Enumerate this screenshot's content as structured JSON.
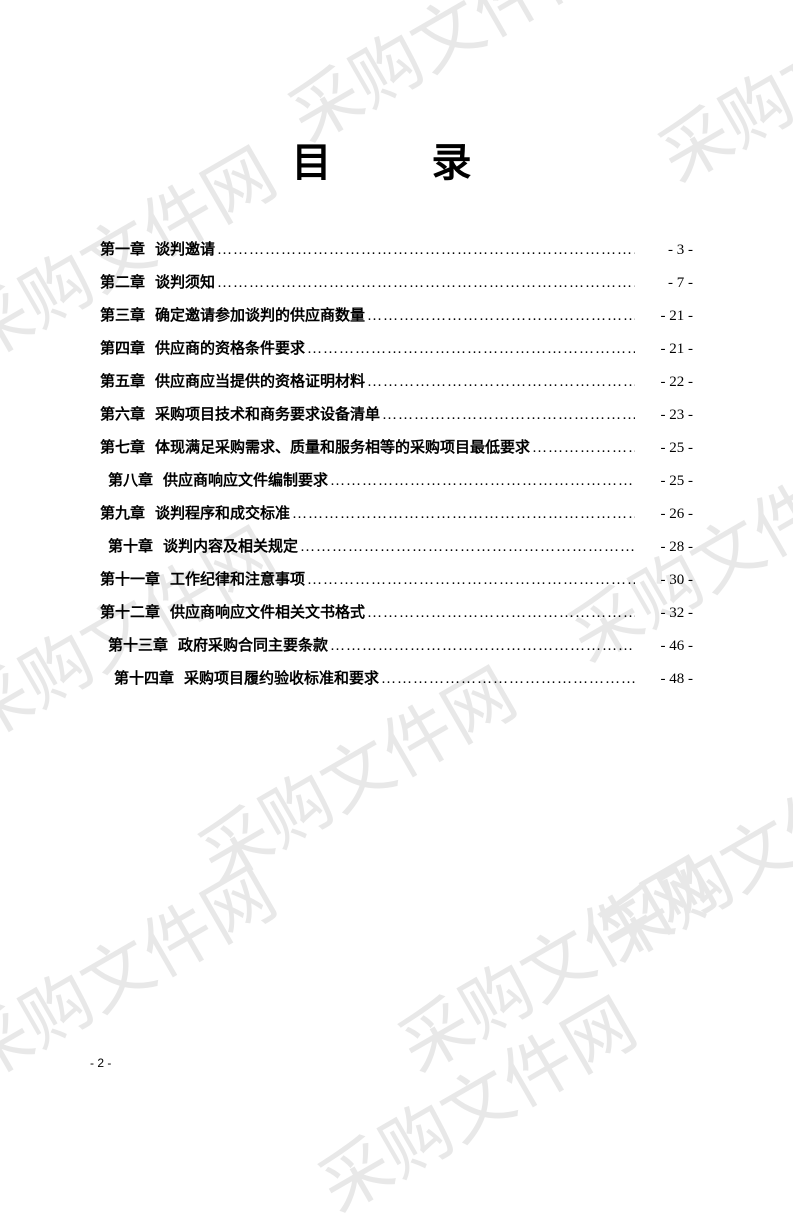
{
  "title": "目　录",
  "watermark_text": "采购文件网",
  "page_number": "- 2 -",
  "toc": [
    {
      "chapter": "第一章",
      "label": "谈判邀请",
      "page": "- 3 -",
      "indent": 0
    },
    {
      "chapter": "第二章",
      "label": "谈判须知",
      "page": "- 7 -",
      "indent": 0
    },
    {
      "chapter": "第三章",
      "label": "确定邀请参加谈判的供应商数量",
      "page": "- 21 -",
      "indent": 0
    },
    {
      "chapter": "第四章",
      "label": "供应商的资格条件要求",
      "page": "- 21 -",
      "indent": 0
    },
    {
      "chapter": "第五章",
      "label": "供应商应当提供的资格证明材料",
      "page": "- 22 -",
      "indent": 0
    },
    {
      "chapter": "第六章",
      "label": "采购项目技术和商务要求设备清单",
      "page": "- 23 -",
      "indent": 0
    },
    {
      "chapter": "第七章",
      "label": "体现满足采购需求、质量和服务相等的采购项目最低要求",
      "page": "- 25 -",
      "indent": 0
    },
    {
      "chapter": "第八章",
      "label": "供应商响应文件编制要求",
      "page": "- 25 -",
      "indent": 1
    },
    {
      "chapter": "第九章",
      "label": "谈判程序和成交标准",
      "page": "- 26 -",
      "indent": 0
    },
    {
      "chapter": "第十章",
      "label": "谈判内容及相关规定",
      "page": "- 28 -",
      "indent": 1
    },
    {
      "chapter": "第十一章",
      "label": "工作纪律和注意事项",
      "page": "- 30 -",
      "indent": 0
    },
    {
      "chapter": "第十二章",
      "label": "供应商响应文件相关文书格式",
      "page": "- 32 -",
      "indent": 0
    },
    {
      "chapter": "第十三章",
      "label": "政府采购合同主要条款",
      "page": "- 46 -",
      "indent": 1
    },
    {
      "chapter": "第十四章",
      "label": "采购项目履约验收标准和要求",
      "page": "- 48 -",
      "indent": 2
    }
  ],
  "colors": {
    "text": "#000000",
    "background": "#ffffff",
    "watermark": "#e8e8e8"
  },
  "typography": {
    "title_fontsize": 40,
    "toc_fontsize": 15,
    "watermark_fontsize": 70,
    "pagenum_fontsize": 12
  }
}
